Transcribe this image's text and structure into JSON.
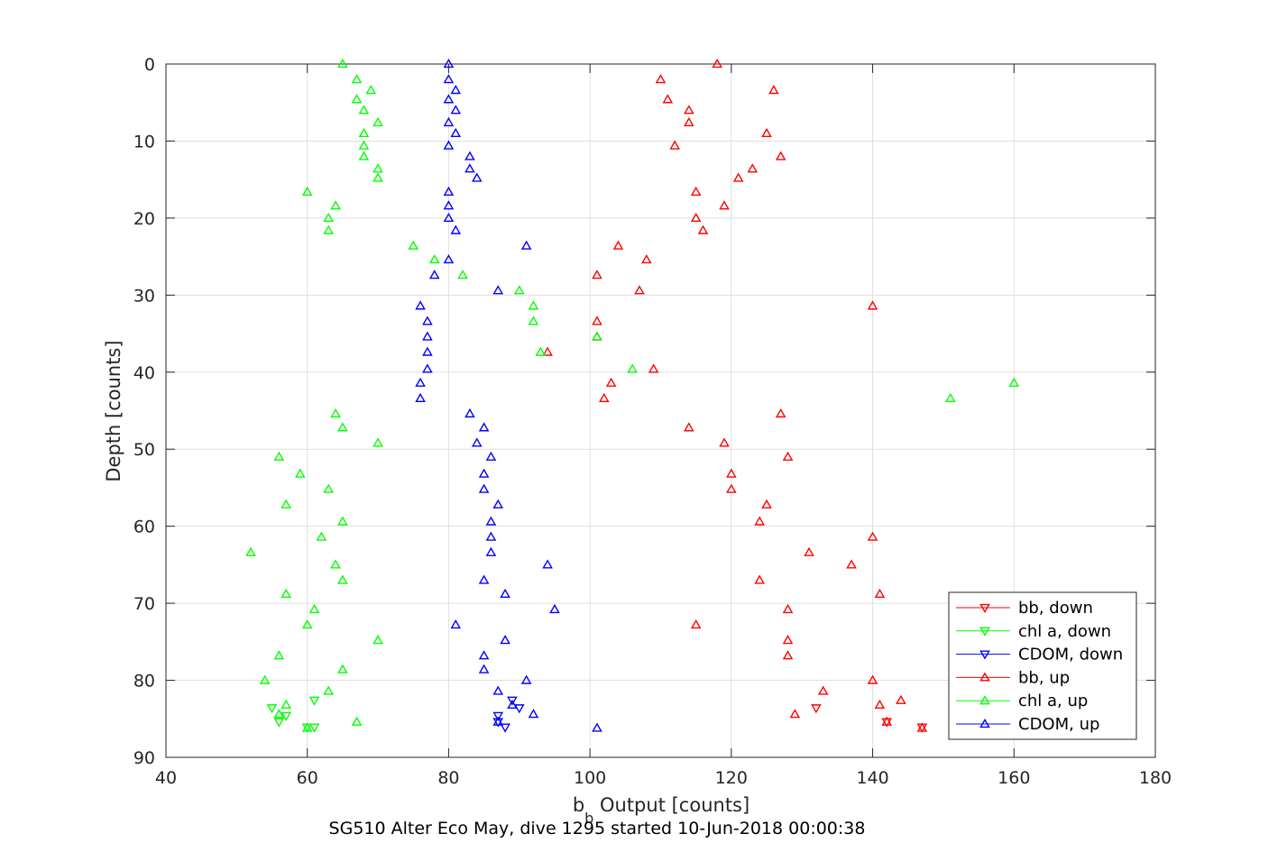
{
  "chart_data": {
    "type": "scatter",
    "title": "SG510 Alter Eco May, dive 1295 started 10-Jun-2018 00:00:38",
    "xlabel_base": "b",
    "xlabel_sub": "b",
    "xlabel_rest": " Output [counts]",
    "ylabel": "Depth [counts]",
    "xlim": [
      40,
      180
    ],
    "ylim": [
      0,
      90
    ],
    "y_reversed": true,
    "x_ticks": [
      "40",
      "60",
      "80",
      "100",
      "120",
      "140",
      "160",
      "180"
    ],
    "y_ticks": [
      "0",
      "10",
      "20",
      "30",
      "40",
      "50",
      "60",
      "70",
      "80",
      "90"
    ],
    "grid": true,
    "legend_position": "bottom-right",
    "series": [
      {
        "name": "bb, down",
        "color": "#ff0000",
        "marker": "triangle-down",
        "points": [
          [
            132,
            83.6
          ],
          [
            142,
            85.4
          ],
          [
            147,
            86.1
          ]
        ]
      },
      {
        "name": "chl a, down",
        "color": "#00ff00",
        "marker": "triangle-down",
        "points": [
          [
            61,
            82.6
          ],
          [
            55,
            83.6
          ],
          [
            57,
            84.6
          ],
          [
            56,
            85.4
          ],
          [
            61,
            86.1
          ],
          [
            60,
            86.1
          ]
        ]
      },
      {
        "name": "CDOM, down",
        "color": "#0000ff",
        "marker": "triangle-down",
        "points": [
          [
            89,
            82.6
          ],
          [
            90,
            83.6
          ],
          [
            87,
            84.6
          ],
          [
            87,
            85.4
          ],
          [
            88,
            86.1
          ]
        ]
      },
      {
        "name": "bb, up",
        "color": "#ff0000",
        "marker": "triangle-up",
        "points": [
          [
            118,
            0
          ],
          [
            110,
            2
          ],
          [
            126,
            3.4
          ],
          [
            111,
            4.6
          ],
          [
            114,
            6
          ],
          [
            114,
            7.6
          ],
          [
            125,
            9
          ],
          [
            112,
            10.6
          ],
          [
            127,
            12
          ],
          [
            123,
            13.6
          ],
          [
            121,
            14.8
          ],
          [
            115,
            16.6
          ],
          [
            119,
            18.4
          ],
          [
            115,
            20
          ],
          [
            116,
            21.6
          ],
          [
            104,
            23.6
          ],
          [
            108,
            25.4
          ],
          [
            101,
            27.4
          ],
          [
            107,
            29.4
          ],
          [
            140,
            31.4
          ],
          [
            101,
            33.4
          ],
          [
            101,
            35.4
          ],
          [
            94,
            37.4
          ],
          [
            109,
            39.6
          ],
          [
            103,
            41.4
          ],
          [
            102,
            43.4
          ],
          [
            127,
            45.4
          ],
          [
            114,
            47.2
          ],
          [
            119,
            49.2
          ],
          [
            128,
            51
          ],
          [
            120,
            53.2
          ],
          [
            120,
            55.2
          ],
          [
            125,
            57.2
          ],
          [
            124,
            59.4
          ],
          [
            140,
            61.4
          ],
          [
            131,
            63.4
          ],
          [
            137,
            65
          ],
          [
            124,
            67
          ],
          [
            141,
            68.8
          ],
          [
            128,
            70.8
          ],
          [
            115,
            72.8
          ],
          [
            128,
            74.8
          ],
          [
            128,
            76.8
          ],
          [
            140,
            80
          ],
          [
            133,
            81.4
          ],
          [
            144,
            82.6
          ],
          [
            141,
            83.2
          ],
          [
            129,
            84.4
          ],
          [
            142,
            85.4
          ],
          [
            147,
            86.2
          ]
        ]
      },
      {
        "name": "chl a, up",
        "color": "#00ff00",
        "marker": "triangle-up",
        "points": [
          [
            65,
            0
          ],
          [
            67,
            2
          ],
          [
            69,
            3.4
          ],
          [
            67,
            4.6
          ],
          [
            68,
            6
          ],
          [
            70,
            7.6
          ],
          [
            68,
            9
          ],
          [
            68,
            10.6
          ],
          [
            68,
            12
          ],
          [
            70,
            13.6
          ],
          [
            70,
            14.8
          ],
          [
            60,
            16.6
          ],
          [
            64,
            18.4
          ],
          [
            63,
            20
          ],
          [
            63,
            21.6
          ],
          [
            75,
            23.6
          ],
          [
            78,
            25.4
          ],
          [
            82,
            27.4
          ],
          [
            90,
            29.4
          ],
          [
            92,
            31.4
          ],
          [
            92,
            33.4
          ],
          [
            101,
            35.4
          ],
          [
            93,
            37.4
          ],
          [
            106,
            39.6
          ],
          [
            160,
            41.4
          ],
          [
            151,
            43.4
          ],
          [
            64,
            45.4
          ],
          [
            65,
            47.2
          ],
          [
            70,
            49.2
          ],
          [
            56,
            51
          ],
          [
            59,
            53.2
          ],
          [
            63,
            55.2
          ],
          [
            57,
            57.2
          ],
          [
            65,
            59.4
          ],
          [
            62,
            61.4
          ],
          [
            52,
            63.4
          ],
          [
            64,
            65
          ],
          [
            65,
            67
          ],
          [
            57,
            68.8
          ],
          [
            61,
            70.8
          ],
          [
            60,
            72.8
          ],
          [
            70,
            74.8
          ],
          [
            56,
            76.8
          ],
          [
            65,
            78.6
          ],
          [
            54,
            80
          ],
          [
            63,
            81.4
          ],
          [
            57,
            83.2
          ],
          [
            56,
            84.4
          ],
          [
            67,
            85.4
          ],
          [
            60,
            86.2
          ]
        ]
      },
      {
        "name": "CDOM, up",
        "color": "#0000ff",
        "marker": "triangle-up",
        "points": [
          [
            80,
            0
          ],
          [
            80,
            2
          ],
          [
            81,
            3.4
          ],
          [
            80,
            4.6
          ],
          [
            81,
            6
          ],
          [
            80,
            7.6
          ],
          [
            81,
            9
          ],
          [
            80,
            10.6
          ],
          [
            83,
            12
          ],
          [
            83,
            13.6
          ],
          [
            84,
            14.8
          ],
          [
            80,
            16.6
          ],
          [
            80,
            18.4
          ],
          [
            80,
            20
          ],
          [
            81,
            21.6
          ],
          [
            91,
            23.6
          ],
          [
            80,
            25.4
          ],
          [
            78,
            27.4
          ],
          [
            87,
            29.4
          ],
          [
            76,
            31.4
          ],
          [
            77,
            33.4
          ],
          [
            77,
            35.4
          ],
          [
            77,
            37.4
          ],
          [
            77,
            39.6
          ],
          [
            76,
            41.4
          ],
          [
            76,
            43.4
          ],
          [
            83,
            45.4
          ],
          [
            85,
            47.2
          ],
          [
            84,
            49.2
          ],
          [
            86,
            51
          ],
          [
            85,
            53.2
          ],
          [
            85,
            55.2
          ],
          [
            87,
            57.2
          ],
          [
            86,
            59.4
          ],
          [
            86,
            61.4
          ],
          [
            86,
            63.4
          ],
          [
            94,
            65
          ],
          [
            85,
            67
          ],
          [
            88,
            68.8
          ],
          [
            95,
            70.8
          ],
          [
            81,
            72.8
          ],
          [
            88,
            74.8
          ],
          [
            85,
            76.8
          ],
          [
            85,
            78.6
          ],
          [
            91,
            80
          ],
          [
            87,
            81.4
          ],
          [
            89,
            83.2
          ],
          [
            92,
            84.4
          ],
          [
            87,
            85.4
          ],
          [
            101,
            86.2
          ]
        ]
      }
    ]
  }
}
